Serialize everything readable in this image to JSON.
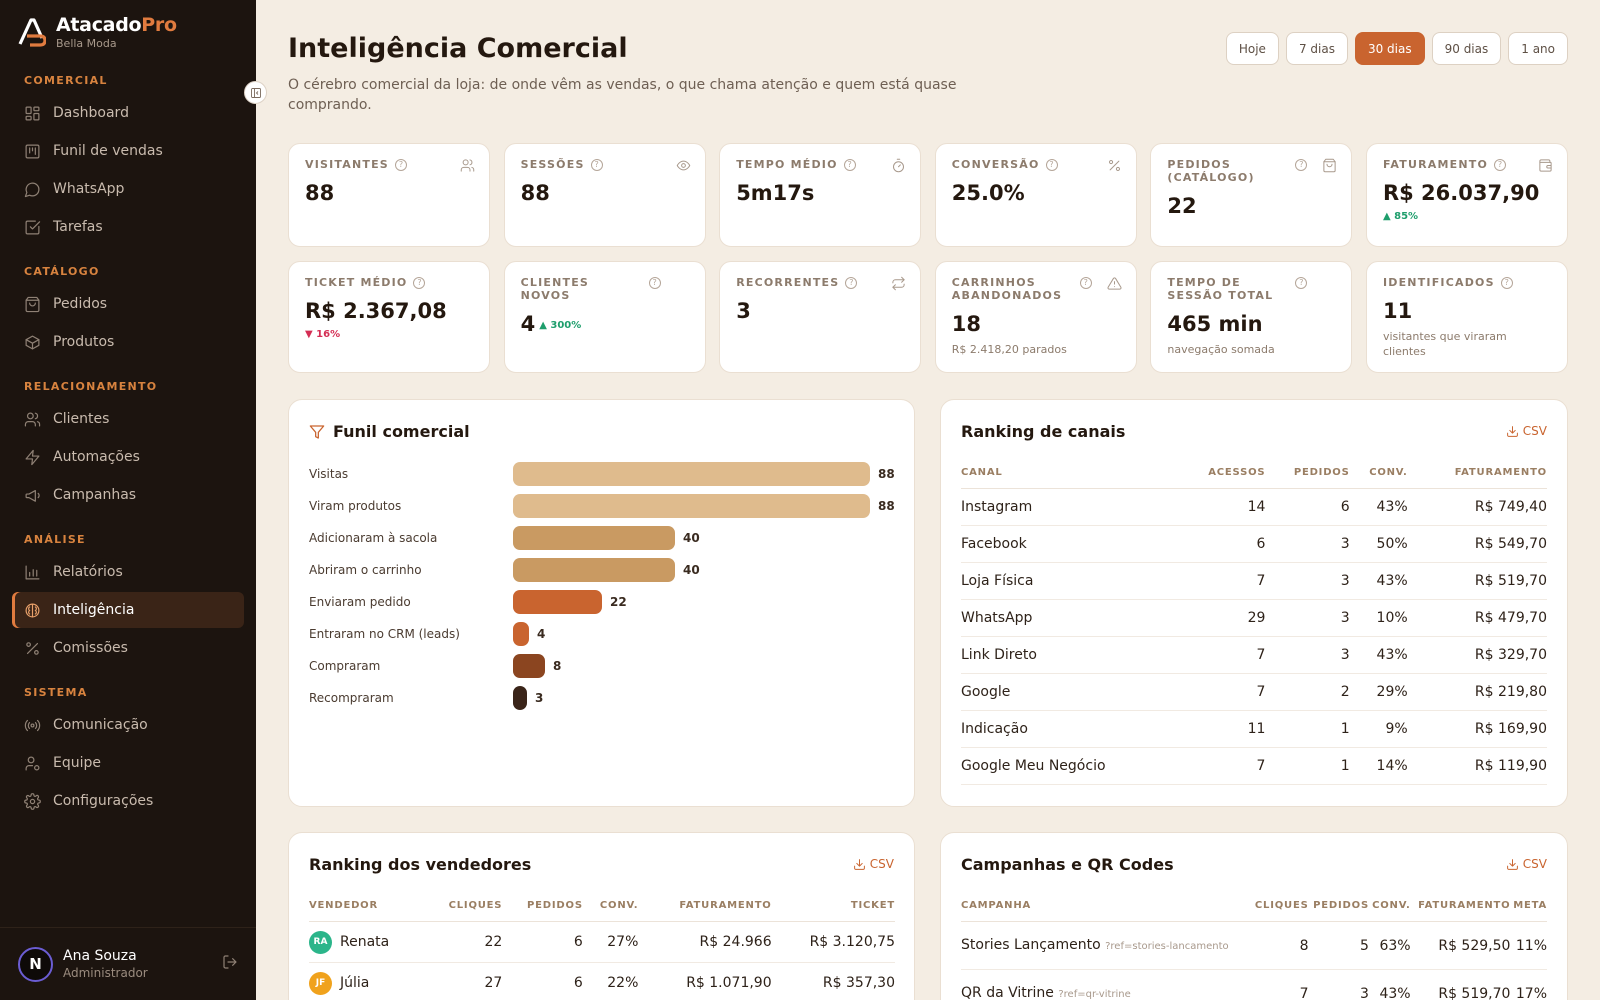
{
  "brand": {
    "name_main": "Atacado",
    "name_accent": "Pro",
    "store": "Bella Moda"
  },
  "sidebar": {
    "sections": {
      "comercial": "COMERCIAL",
      "catalogo": "CATÁLOGO",
      "relacionamento": "RELACIONAMENTO",
      "analise": "ANÁLISE",
      "sistema": "SISTEMA"
    },
    "items": {
      "dashboard": "Dashboard",
      "funil": "Funil de vendas",
      "whatsapp": "WhatsApp",
      "tarefas": "Tarefas",
      "pedidos": "Pedidos",
      "produtos": "Produtos",
      "clientes": "Clientes",
      "automacoes": "Automações",
      "campanhas": "Campanhas",
      "relatorios": "Relatórios",
      "inteligencia": "Inteligência",
      "comissoes": "Comissões",
      "comunicacao": "Comunicação",
      "equipe": "Equipe",
      "configuracoes": "Configurações"
    },
    "active_item": "Inteligência"
  },
  "user": {
    "initial": "N",
    "name": "Ana Souza",
    "role": "Administrador"
  },
  "header": {
    "title": "Inteligência Comercial",
    "subtitle": "O cérebro comercial da loja: de onde vêm as vendas, o que chama atenção e quem está quase comprando."
  },
  "ranges": {
    "today": "Hoje",
    "d7": "7 dias",
    "d30": "30 dias",
    "d90": "90 dias",
    "y1": "1 ano",
    "selected": "30 dias"
  },
  "kpis": {
    "visitantes": {
      "label": "VISITANTES",
      "value": "88"
    },
    "sessoes": {
      "label": "SESSÕES",
      "value": "88"
    },
    "tempo_medio": {
      "label": "TEMPO MÉDIO",
      "value": "5m17s"
    },
    "conversao": {
      "label": "CONVERSÃO",
      "value": "25.0%"
    },
    "pedidos": {
      "label": "PEDIDOS (CATÁLOGO)",
      "value": "22"
    },
    "faturamento": {
      "label": "FATURAMENTO",
      "value": "R$ 26.037,90",
      "delta": "▲ 85%"
    },
    "ticket": {
      "label": "TICKET MÉDIO",
      "value": "R$ 2.367,08",
      "delta": "▼ 16%"
    },
    "novos": {
      "label": "CLIENTES NOVOS",
      "value": "4",
      "delta": "▲ 300%"
    },
    "recorrentes": {
      "label": "RECORRENTES",
      "value": "3"
    },
    "carrinhos": {
      "label": "CARRINHOS ABANDONADOS",
      "value": "18",
      "note": "R$ 2.418,20 parados"
    },
    "sessao_total": {
      "label": "TEMPO DE SESSÃO TOTAL",
      "value": "465 min",
      "note": "navegação somada"
    },
    "identificados": {
      "label": "IDENTIFICADOS",
      "value": "11",
      "note": "visitantes que viraram clientes"
    }
  },
  "funnel": {
    "title": "Funil comercial",
    "max": 88,
    "colors": [
      "#dfbb8d",
      "#dfbb8d",
      "#c99a62",
      "#c99a62",
      "#c9642f",
      "#c9642f",
      "#8b4520",
      "#3a2419"
    ],
    "steps": [
      {
        "label": "Visitas",
        "value": "88"
      },
      {
        "label": "Viram produtos",
        "value": "88"
      },
      {
        "label": "Adicionaram à sacola",
        "value": "40"
      },
      {
        "label": "Abriram o carrinho",
        "value": "40"
      },
      {
        "label": "Enviaram pedido",
        "value": "22"
      },
      {
        "label": "Entraram no CRM (leads)",
        "value": "4"
      },
      {
        "label": "Compraram",
        "value": "8"
      },
      {
        "label": "Recompraram",
        "value": "3"
      }
    ]
  },
  "channels": {
    "title": "Ranking de canais",
    "csv": "CSV",
    "columns": [
      "CANAL",
      "ACESSOS",
      "PEDIDOS",
      "CONV.",
      "FATURAMENTO"
    ],
    "rows": [
      [
        "Instagram",
        "14",
        "6",
        "43%",
        "R$ 749,40"
      ],
      [
        "Facebook",
        "6",
        "3",
        "50%",
        "R$ 549,70"
      ],
      [
        "Loja Física",
        "7",
        "3",
        "43%",
        "R$ 519,70"
      ],
      [
        "WhatsApp",
        "29",
        "3",
        "10%",
        "R$ 479,70"
      ],
      [
        "Link Direto",
        "7",
        "3",
        "43%",
        "R$ 329,70"
      ],
      [
        "Google",
        "7",
        "2",
        "29%",
        "R$ 219,80"
      ],
      [
        "Indicação",
        "11",
        "1",
        "9%",
        "R$ 169,90"
      ],
      [
        "Google Meu Negócio",
        "7",
        "1",
        "14%",
        "R$ 119,90"
      ]
    ]
  },
  "sellers": {
    "title": "Ranking dos vendedores",
    "csv": "CSV",
    "columns": [
      "VENDEDOR",
      "CLIQUES",
      "PEDIDOS",
      "CONV.",
      "FATURAMENTO",
      "TICKET"
    ],
    "rows": [
      {
        "initials": "RA",
        "color": "#2bb58a",
        "name": "Renata",
        "cliques": "22",
        "pedidos": "6",
        "conv": "27%",
        "faturamento": "R$ 24.966",
        "ticket": "R$ 3.120,75"
      },
      {
        "initials": "JF",
        "color": "#f0a21c",
        "name": "Júlia",
        "cliques": "27",
        "pedidos": "6",
        "conv": "22%",
        "faturamento": "R$ 1.071,90",
        "ticket": "R$ 357,30"
      }
    ]
  },
  "campaigns": {
    "title": "Campanhas e QR Codes",
    "csv": "CSV",
    "columns": [
      "CAMPANHA",
      "CLIQUES",
      "PEDIDOS",
      "CONV.",
      "FATURAMENTO",
      "META"
    ],
    "rows": [
      {
        "name": "Stories Lançamento",
        "ref": "?ref=stories-lancamento",
        "cliques": "8",
        "pedidos": "5",
        "conv": "63%",
        "faturamento": "R$ 529,50",
        "meta": "11%"
      },
      {
        "name": "QR da Vitrine",
        "ref": "?ref=qr-vitrine",
        "cliques": "7",
        "pedidos": "3",
        "conv": "43%",
        "faturamento": "R$ 519,70",
        "meta": "17%"
      }
    ]
  }
}
